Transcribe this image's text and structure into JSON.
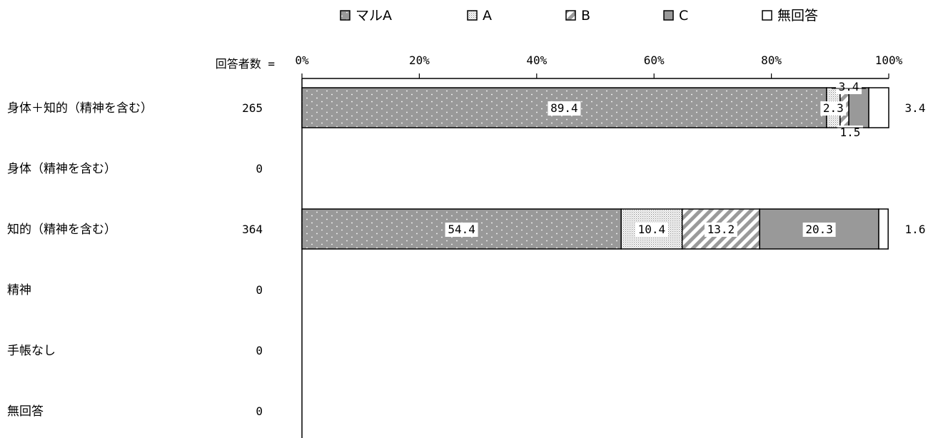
{
  "chart_data": {
    "type": "bar",
    "stacked": "percent",
    "orientation": "horizontal",
    "respondents_label": "回答者数 =",
    "x_ticks": [
      "0%",
      "20%",
      "40%",
      "60%",
      "80%",
      "100%"
    ],
    "xlim": [
      0,
      100
    ],
    "legend_position": "top",
    "categories": [
      "身体＋知的（精神を含む）",
      "身体（精神を含む）",
      "知的（精神を含む）",
      "精神",
      "手帳なし",
      "無回答"
    ],
    "respondents": [
      "265",
      "0",
      "364",
      "0",
      "0",
      "0"
    ],
    "series": [
      {
        "name": "マルA",
        "pattern": "dots-dark",
        "values": [
          89.4,
          null,
          54.4,
          null,
          null,
          null
        ]
      },
      {
        "name": "A",
        "pattern": "dots-light",
        "values": [
          2.3,
          null,
          10.4,
          null,
          null,
          null
        ]
      },
      {
        "name": "B",
        "pattern": "diagonal",
        "values": [
          1.5,
          null,
          13.2,
          null,
          null,
          null
        ]
      },
      {
        "name": "C",
        "pattern": "solid-gray",
        "values": [
          3.4,
          null,
          20.3,
          null,
          null,
          null
        ]
      },
      {
        "name": "無回答",
        "pattern": "white",
        "values": [
          3.4,
          null,
          1.6,
          null,
          null,
          null
        ]
      }
    ],
    "data_labels": [
      [
        {
          "text": "89.4",
          "series": 0,
          "placement": "inside"
        },
        {
          "text": "2.3",
          "series": 1,
          "placement": "inside"
        },
        {
          "text": "1.5",
          "series": 2,
          "placement": "below"
        },
        {
          "text": "3.4",
          "series": 3,
          "placement": "above"
        },
        {
          "text": "3.4",
          "series": 4,
          "placement": "right"
        }
      ],
      [],
      [
        {
          "text": "54.4",
          "series": 0,
          "placement": "inside"
        },
        {
          "text": "10.4",
          "series": 1,
          "placement": "inside"
        },
        {
          "text": "13.2",
          "series": 2,
          "placement": "inside"
        },
        {
          "text": "20.3",
          "series": 3,
          "placement": "inside"
        },
        {
          "text": "1.6",
          "series": 4,
          "placement": "right"
        }
      ],
      [],
      [],
      []
    ],
    "colors": {
      "dark_gray": "#999999",
      "white": "#ffffff",
      "stroke": "#000000"
    }
  }
}
